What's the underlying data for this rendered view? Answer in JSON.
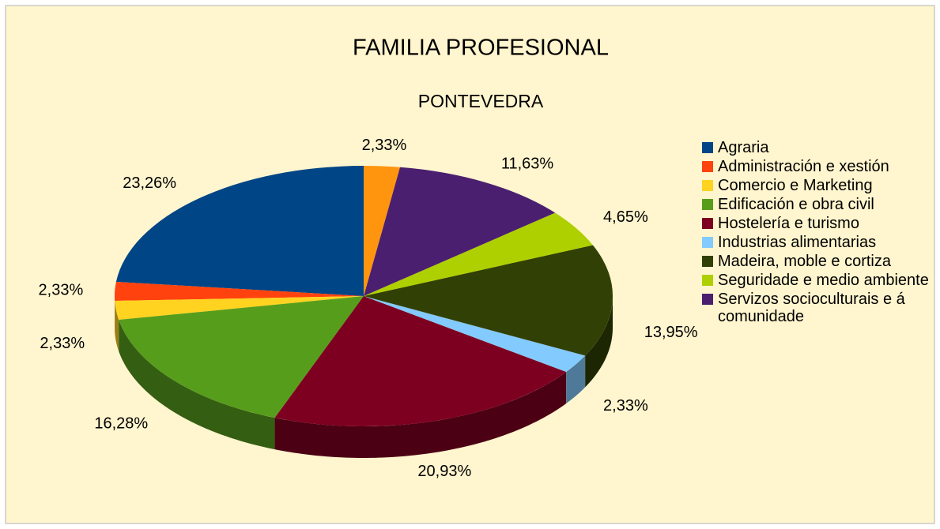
{
  "chart_data": {
    "type": "pie",
    "title": "FAMILIA PROFESIONAL",
    "subtitle": "PONTEVEDRA",
    "categories": [
      "Agraria",
      "Administración e xestión",
      "Comercio e Marketing",
      "Edificación e obra civil",
      "Hostelería e turismo",
      "Industrias alimentarias",
      "Madeira, moble e cortiza",
      "Seguridade e medio ambiente",
      "Servizos socioculturais e á comunidade",
      null
    ],
    "values": [
      23.26,
      2.33,
      2.33,
      16.28,
      20.93,
      2.33,
      13.95,
      4.65,
      11.63,
      2.33
    ],
    "value_labels": [
      "23,26%",
      "2,33%",
      "2,33%",
      "16,28%",
      "20,93%",
      "2,33%",
      "13,95%",
      "4,65%",
      "11,63%",
      "2,33%"
    ],
    "colors": [
      "#004586",
      "#ff420e",
      "#ffd320",
      "#579d1c",
      "#7e0021",
      "#83caff",
      "#314004",
      "#aecf00",
      "#4b1f6f",
      "#ff950e"
    ],
    "legend": "right"
  }
}
